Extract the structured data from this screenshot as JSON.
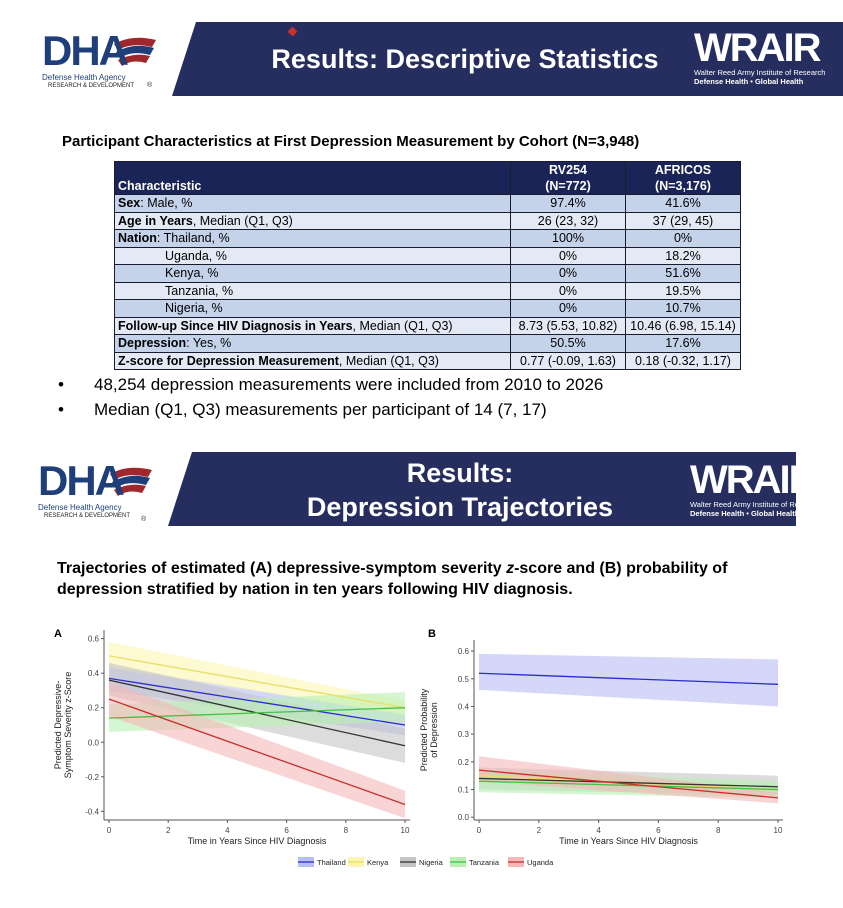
{
  "slide1": {
    "title": "Results: Descriptive Statistics",
    "logo_left": {
      "letters": "DHA",
      "line1": "Defense Health Agency",
      "line2": "RESEARCH & DEVELOPMENT",
      "mark": "®"
    },
    "logo_right": {
      "letters": "WRAIR",
      "line1": "Walter Reed Army Institute of Research",
      "line2": "Defense Health  •  Global Health"
    },
    "table_title": "Participant Characteristics at First Depression Measurement by Cohort (N=3,948)",
    "table": {
      "headers": {
        "characteristic": "Characteristic",
        "c1_name": "RV254",
        "c1_n": "(N=772)",
        "c2_name": "AFRICOS",
        "c2_n": "(N=3,176)"
      },
      "rows": [
        {
          "bold": "Sex",
          "rest": ": Male, %",
          "v1": "97.4%",
          "v2": "41.6%"
        },
        {
          "bold": "Age in Years",
          "rest": ", Median (Q1, Q3)",
          "v1": "26 (23, 32)",
          "v2": "37 (29, 45)"
        },
        {
          "bold": "Nation",
          "rest": ": Thailand, %",
          "v1": "100%",
          "v2": "0%"
        },
        {
          "bold": "",
          "rest": "Uganda, %",
          "v1": "0%",
          "v2": "18.2%",
          "indent": true
        },
        {
          "bold": "",
          "rest": "Kenya, %",
          "v1": "0%",
          "v2": "51.6%",
          "indent": true
        },
        {
          "bold": "",
          "rest": "Tanzania, %",
          "v1": "0%",
          "v2": "19.5%",
          "indent": true
        },
        {
          "bold": "",
          "rest": "Nigeria, %",
          "v1": "0%",
          "v2": "10.7%",
          "indent": true
        },
        {
          "bold": "Follow-up Since HIV Diagnosis in Years",
          "rest": ", Median (Q1, Q3)",
          "v1": "8.73 (5.53, 10.82)",
          "v2": "10.46 (6.98, 15.14)"
        },
        {
          "bold": "Depression",
          "rest": ": Yes, %",
          "v1": "50.5%",
          "v2": "17.6%"
        },
        {
          "bold": "Z-score for Depression Measurement",
          "rest": ", Median (Q1, Q3)",
          "v1": "0.77 (-0.09, 1.63)",
          "v2": "0.18 (-0.32, 1.17)"
        }
      ]
    },
    "bullets": [
      "48,254 depression measurements were included from 2010 to 2026",
      "Median (Q1, Q3) measurements per participant of 14 (7, 17)"
    ],
    "bullet_glyph": "•"
  },
  "slide2": {
    "title_line1": "Results:",
    "title_line2": "Depression Trajectories",
    "caption_line1_a": "Trajectories of estimated (A) depressive-symptom severity ",
    "caption_line1_z": "z",
    "caption_line1_b": "-score and (B) probability of",
    "caption_line2": "depression stratified by nation in ten years following HIV diagnosis."
  },
  "chart_data": [
    {
      "type": "line",
      "panel_label": "A",
      "xlabel": "Time in Years Since HIV Diagnosis",
      "ylabel_line1": "Predicted Depressive-",
      "ylabel_line2": "Symptom Severity z-Score",
      "xlim": [
        0,
        10
      ],
      "ylim": [
        -0.45,
        0.65
      ],
      "xticks": [
        0,
        2,
        4,
        6,
        8,
        10
      ],
      "yticks": [
        -0.4,
        -0.2,
        0.0,
        0.2,
        0.4,
        0.6
      ],
      "series": [
        {
          "name": "Thailand",
          "x": [
            0,
            10
          ],
          "y": [
            0.37,
            0.1
          ],
          "lower": [
            0.3,
            0.04
          ],
          "upper": [
            0.44,
            0.16
          ]
        },
        {
          "name": "Kenya",
          "x": [
            0,
            10
          ],
          "y": [
            0.5,
            0.2
          ],
          "lower": [
            0.43,
            0.16
          ],
          "upper": [
            0.58,
            0.24
          ]
        },
        {
          "name": "Nigeria",
          "x": [
            0,
            10
          ],
          "y": [
            0.36,
            -0.02
          ],
          "lower": [
            0.27,
            -0.12
          ],
          "upper": [
            0.46,
            0.08
          ]
        },
        {
          "name": "Tanzania",
          "x": [
            0,
            10
          ],
          "y": [
            0.14,
            0.2
          ],
          "lower": [
            0.06,
            0.12
          ],
          "upper": [
            0.22,
            0.29
          ]
        },
        {
          "name": "Uganda",
          "x": [
            0,
            10
          ],
          "y": [
            0.25,
            -0.36
          ],
          "lower": [
            0.15,
            -0.44
          ],
          "upper": [
            0.35,
            -0.28
          ]
        }
      ]
    },
    {
      "type": "line",
      "panel_label": "B",
      "xlabel": "Time in Years Since HIV Diagnosis",
      "ylabel_line1": "Predicted Probability",
      "ylabel_line2": "of Depression",
      "xlim": [
        0,
        10
      ],
      "ylim": [
        -0.01,
        0.64
      ],
      "xticks": [
        0,
        2,
        4,
        6,
        8,
        10
      ],
      "yticks": [
        0.0,
        0.1,
        0.2,
        0.3,
        0.4,
        0.5,
        0.6
      ],
      "series": [
        {
          "name": "Thailand",
          "x": [
            0,
            10
          ],
          "y": [
            0.52,
            0.48
          ],
          "lower": [
            0.46,
            0.4
          ],
          "upper": [
            0.59,
            0.57
          ]
        },
        {
          "name": "Kenya",
          "x": [
            0,
            10
          ],
          "y": [
            0.15,
            0.1
          ],
          "lower": [
            0.13,
            0.09
          ],
          "upper": [
            0.17,
            0.11
          ]
        },
        {
          "name": "Nigeria",
          "x": [
            0,
            10
          ],
          "y": [
            0.14,
            0.11
          ],
          "lower": [
            0.1,
            0.08
          ],
          "upper": [
            0.18,
            0.15
          ]
        },
        {
          "name": "Tanzania",
          "x": [
            0,
            10
          ],
          "y": [
            0.13,
            0.1
          ],
          "lower": [
            0.09,
            0.07
          ],
          "upper": [
            0.17,
            0.13
          ]
        },
        {
          "name": "Uganda",
          "x": [
            0,
            10
          ],
          "y": [
            0.17,
            0.07
          ],
          "lower": [
            0.13,
            0.05
          ],
          "upper": [
            0.22,
            0.09
          ]
        }
      ]
    }
  ],
  "legend": {
    "items": [
      {
        "name": "Thailand",
        "fill": "#b8bdf4",
        "line": "#2b2bd0"
      },
      {
        "name": "Kenya",
        "fill": "#fbf5b0",
        "line": "#e8df66"
      },
      {
        "name": "Nigeria",
        "fill": "#c4c4c4",
        "line": "#333333"
      },
      {
        "name": "Tanzania",
        "fill": "#b8f0b0",
        "line": "#44c044"
      },
      {
        "name": "Uganda",
        "fill": "#f4b8b8",
        "line": "#c8302c"
      }
    ]
  },
  "colors": {
    "banner": "#262e5f",
    "table_header": "#1a2456",
    "row_a": "#c4d2ea",
    "row_b": "#e3e9f5",
    "dha_blue": "#1f3f7a",
    "dha_red": "#a0282c"
  }
}
